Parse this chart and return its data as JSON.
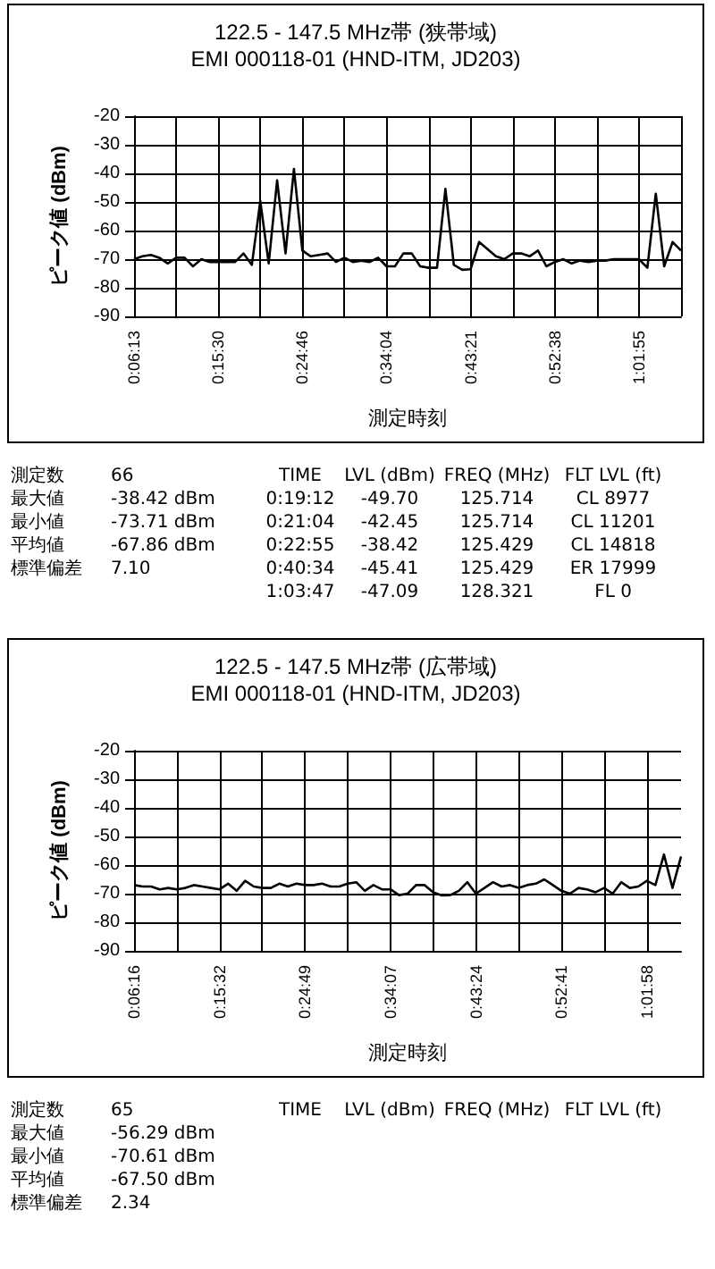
{
  "chart_data": [
    {
      "type": "line",
      "title": "122.5 - 147.5 MHz帯 (狭帯域)",
      "subtitle": "EMI 000118-01 (HND-ITM, JD203)",
      "xlabel": "測定時刻",
      "ylabel": "ピーク値 (dBm)",
      "categories": [
        "0:06:13",
        null,
        null,
        null,
        null,
        null,
        null,
        null,
        null,
        null,
        "0:15:30",
        null,
        null,
        null,
        null,
        null,
        null,
        null,
        null,
        null,
        "0:24:46",
        null,
        null,
        null,
        null,
        null,
        null,
        null,
        null,
        null,
        "0:34:04",
        null,
        null,
        null,
        null,
        null,
        null,
        null,
        null,
        null,
        "0:43:21",
        null,
        null,
        null,
        null,
        null,
        null,
        null,
        null,
        null,
        "0:52:38",
        null,
        null,
        null,
        null,
        null,
        null,
        null,
        null,
        null,
        "1:01:55",
        null,
        null,
        null,
        null,
        null
      ],
      "series": [
        {
          "color": "#000000",
          "values": [
            -70,
            -69,
            -68.5,
            -69.5,
            -71.5,
            -69.5,
            -69.5,
            -72.5,
            -70,
            -71,
            -71,
            -71,
            -71,
            -68,
            -72,
            -49.7,
            -71.5,
            -42.45,
            -68,
            -38.42,
            -67,
            -69,
            -68.5,
            -68,
            -71,
            -69.5,
            -71,
            -70.5,
            -71,
            -69.5,
            -72.5,
            -72.5,
            -68,
            -68,
            -72.5,
            -73,
            -73,
            -45.41,
            -72,
            -73.71,
            -73.5,
            -64,
            -66.5,
            -69,
            -70,
            -68,
            -68,
            -69,
            -67,
            -72.5,
            -71,
            -70,
            -71.5,
            -70.5,
            -71,
            -70.5,
            -70.5,
            -70,
            -70,
            -70,
            -70,
            -73,
            -47.09,
            -72.5,
            -64,
            -67
          ]
        }
      ],
      "ylim": [
        -90,
        -20
      ],
      "yticks": [
        -90,
        -80,
        -70,
        -60,
        -50,
        -40,
        -30,
        -20
      ],
      "grid": true,
      "marker": "none",
      "line_style": "solid",
      "annotations": [
        "測定数\t66",
        "最大値\t-38.42 dBm",
        "最小値\t-73.71 dBm",
        "平均値\t-67.86 dBm",
        "標準偏差\t7.10",
        "TIME\tLVL (dBm)\tFREQ (MHz)\tFLT LVL (ft)",
        "0:19:12\t-49.70\t125.714\tCL 8977",
        "0:21:04\t-42.45\t125.714\tCL 11201",
        "0:22:55\t-38.42\t125.429\tCL 14818",
        "0:40:34\t-45.41\t125.429\tER 17999",
        "1:03:47\t-47.09\t128.321\tFL 0"
      ]
    },
    {
      "type": "line",
      "title": "122.5 - 147.5 MHz帯 (広帯域)",
      "subtitle": "EMI 000118-01 (HND-ITM, JD203)",
      "xlabel": "測定時刻",
      "ylabel": "ピーク値 (dBm)",
      "categories": [
        "0:06:16",
        null,
        null,
        null,
        null,
        null,
        null,
        null,
        null,
        null,
        "0:15:32",
        null,
        null,
        null,
        null,
        null,
        null,
        null,
        null,
        null,
        "0:24:49",
        null,
        null,
        null,
        null,
        null,
        null,
        null,
        null,
        null,
        "0:34:07",
        null,
        null,
        null,
        null,
        null,
        null,
        null,
        null,
        null,
        "0:43:24",
        null,
        null,
        null,
        null,
        null,
        null,
        null,
        null,
        null,
        "0:52:41",
        null,
        null,
        null,
        null,
        null,
        null,
        null,
        null,
        null,
        "1:01:58",
        null,
        null,
        null,
        null
      ],
      "series": [
        {
          "color": "#000000",
          "values": [
            -67,
            -67.5,
            -67.5,
            -68.5,
            -68,
            -68.5,
            -68,
            -67,
            -67.5,
            -68,
            -68.5,
            -66.5,
            -69,
            -65.5,
            -67.5,
            -68,
            -68,
            -66.5,
            -67.5,
            -66.5,
            -67,
            -67,
            -66.5,
            -67.5,
            -67.5,
            -66.5,
            -66,
            -69,
            -67,
            -68.5,
            -68.5,
            -70.5,
            -70,
            -67,
            -67,
            -69.5,
            -70.61,
            -70.5,
            -69,
            -66,
            -70,
            -68,
            -66,
            -67.5,
            -67,
            -68,
            -67,
            -66.5,
            -65,
            -67,
            -69,
            -70,
            -68,
            -68.5,
            -69.5,
            -68,
            -70,
            -66,
            -68,
            -67.5,
            -65.5,
            -67,
            -56.29,
            -68,
            -57
          ]
        }
      ],
      "ylim": [
        -90,
        -20
      ],
      "yticks": [
        -90,
        -80,
        -70,
        -60,
        -50,
        -40,
        -30,
        -20
      ],
      "grid": true,
      "marker": "none",
      "line_style": "solid",
      "annotations": [
        "測定数\t65",
        "最大値\t-56.29 dBm",
        "最小値\t-70.61 dBm",
        "平均値\t-67.50 dBm",
        "標準偏差\t2.34",
        "TIME\tLVL (dBm)\tFREQ (MHz)\tFLT LVL (ft)"
      ]
    }
  ]
}
